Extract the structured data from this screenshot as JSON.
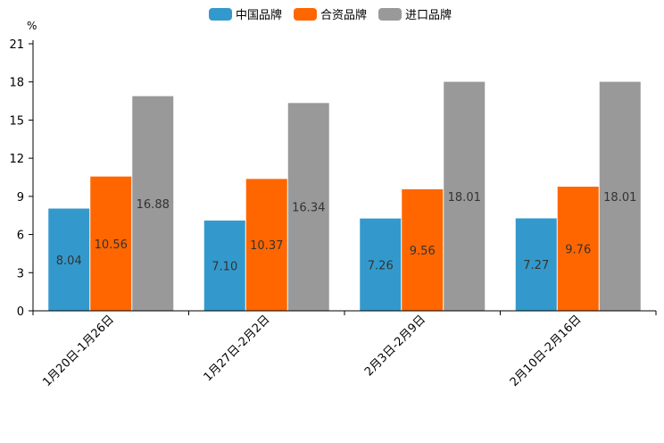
{
  "chart_data": {
    "type": "bar",
    "title": "",
    "xlabel": "",
    "ylabel": "%",
    "ylim": [
      0,
      21
    ],
    "yticks": [
      0,
      3,
      6,
      9,
      12,
      15,
      18,
      21
    ],
    "grid": false,
    "legend_position": "top-center",
    "categories": [
      "1月20日-1月26日",
      "1月27日-2月2日",
      "2月3日-2月9日",
      "2月10日-2月16日"
    ],
    "series": [
      {
        "name": "中国品牌",
        "color": "#3399cc",
        "values": [
          8.04,
          7.1,
          7.26,
          7.27
        ],
        "labels": [
          "8.04",
          "7.10",
          "7.26",
          "7.27"
        ]
      },
      {
        "name": "合资品牌",
        "color": "#ff6600",
        "values": [
          10.56,
          10.37,
          9.56,
          9.76
        ],
        "labels": [
          "10.56",
          "10.37",
          "9.56",
          "9.76"
        ]
      },
      {
        "name": "进口品牌",
        "color": "#999999",
        "values": [
          16.88,
          16.34,
          18.01,
          18.01
        ],
        "labels": [
          "16.88",
          "16.34",
          "18.01",
          "18.01"
        ]
      }
    ]
  }
}
